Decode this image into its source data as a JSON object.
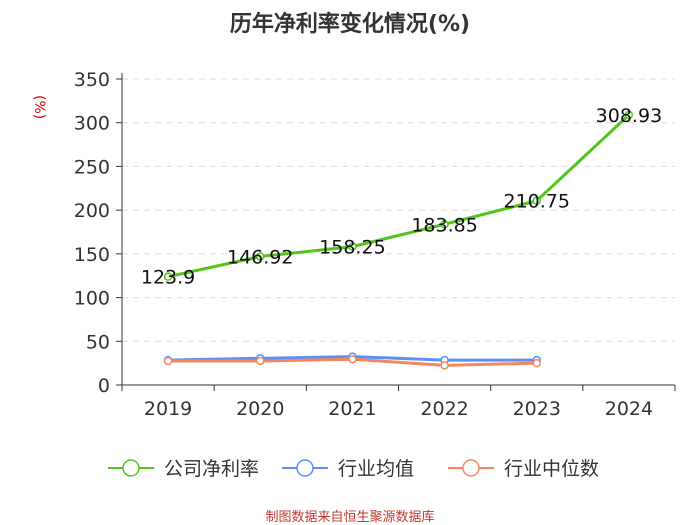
{
  "title": "历年净利率变化情况(%)",
  "source": "制图数据来自恒生聚源数据库",
  "chart_data": {
    "type": "line",
    "title": "历年净利率变化情况(%)",
    "ylabel": "(%)",
    "xlabel": "",
    "ylim": [
      0,
      350
    ],
    "yticks": [
      0,
      50,
      100,
      150,
      200,
      250,
      300,
      350
    ],
    "categories": [
      "2019",
      "2020",
      "2021",
      "2022",
      "2023",
      "2024"
    ],
    "series": [
      {
        "name": "公司净利率",
        "color": "#52c41a",
        "values": [
          123.9,
          146.92,
          158.25,
          183.85,
          210.75,
          308.93
        ],
        "labels": [
          "123.9",
          "146.92",
          "158.25",
          "183.85",
          "210.75",
          "308.93"
        ]
      },
      {
        "name": "行业均值",
        "color": "#5b8ff9",
        "values": [
          28.5,
          30.5,
          32.5,
          28.5,
          28.5,
          null
        ]
      },
      {
        "name": "行业中位数",
        "color": "#f6875b",
        "values": [
          27.5,
          27.5,
          29.5,
          22.5,
          25.0,
          null
        ]
      }
    ],
    "legend_position": "bottom",
    "grid": true
  }
}
